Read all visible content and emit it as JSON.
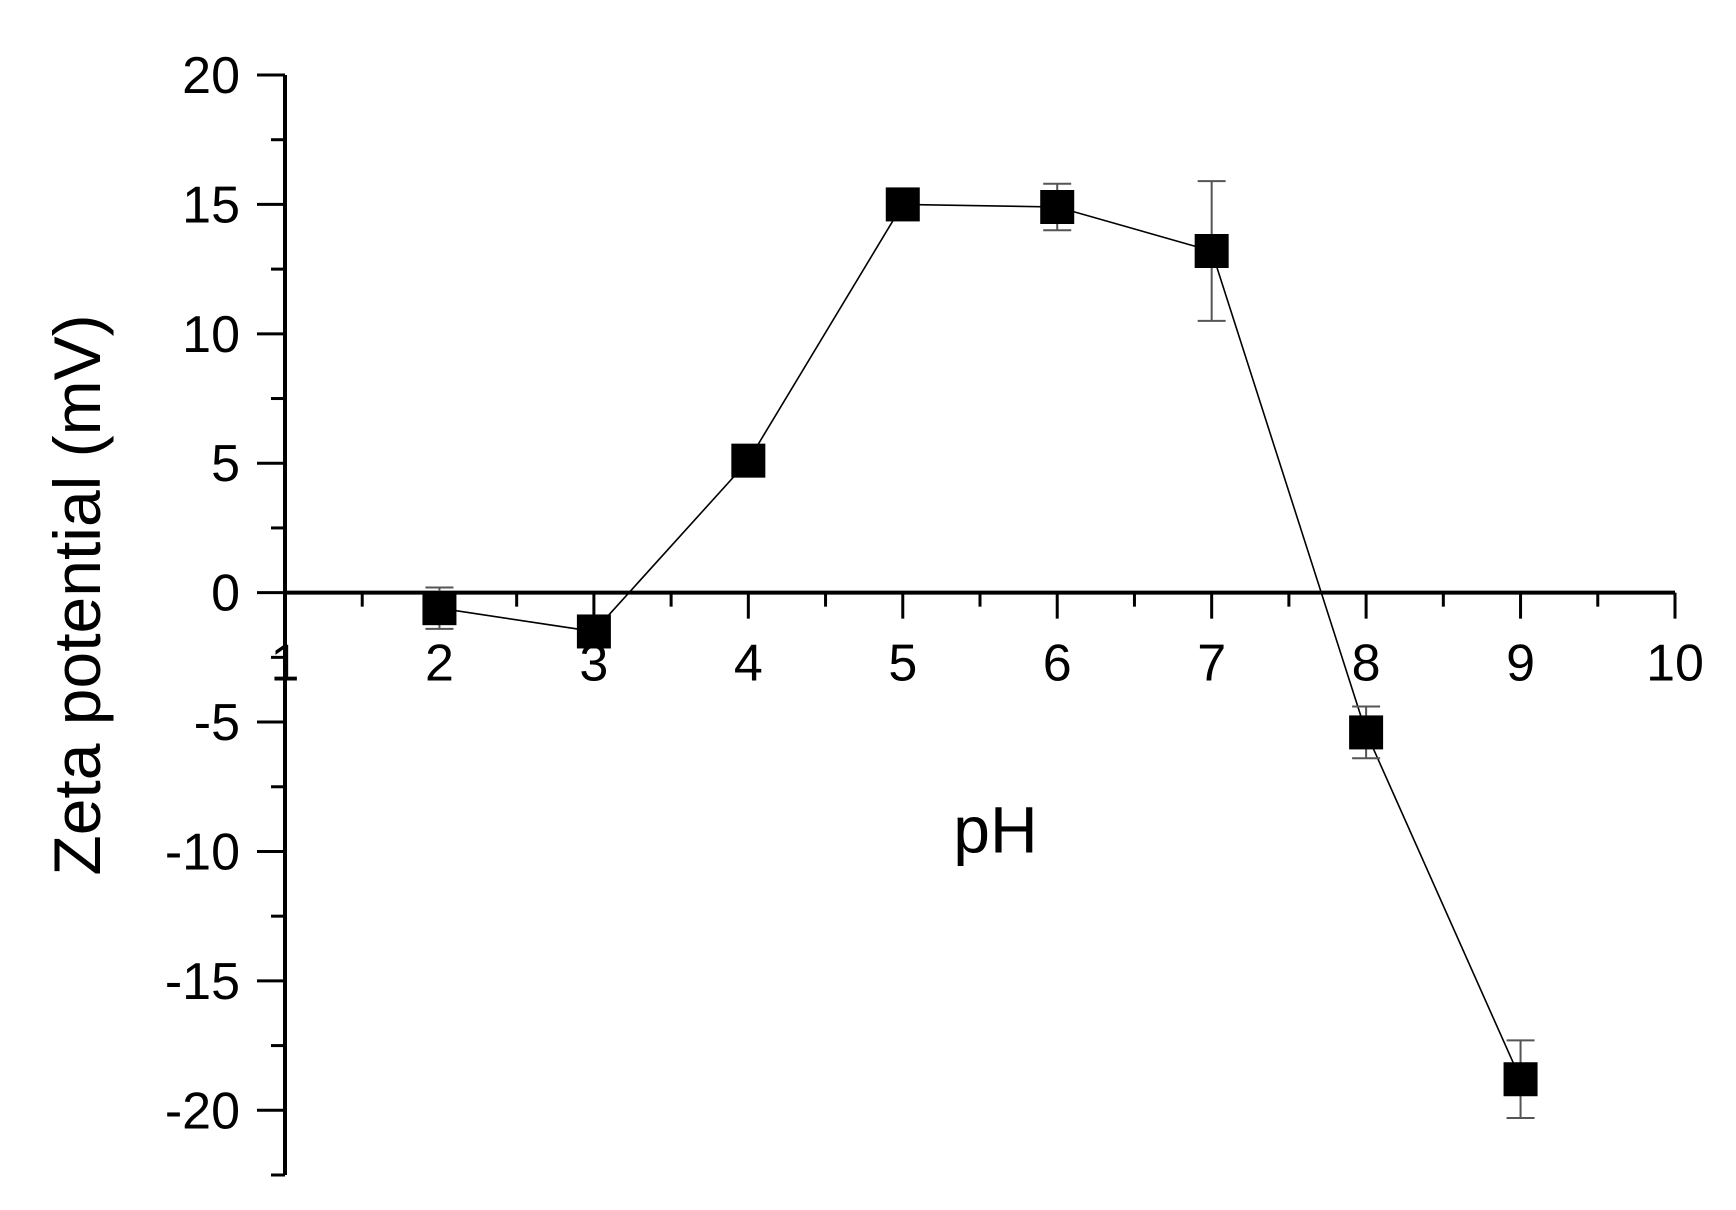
{
  "chart_data": {
    "type": "scatter",
    "title": "",
    "xlabel": "pH",
    "ylabel": "Zeta potential (mV)",
    "xlim": [
      1,
      10
    ],
    "ylim": [
      -22.5,
      20
    ],
    "x_ticks": [
      "1",
      "2",
      "3",
      "4",
      "5",
      "6",
      "7",
      "8",
      "9",
      "10"
    ],
    "y_ticks": [
      "20",
      "15",
      "10",
      "5",
      "0",
      "-5",
      "-10",
      "-15",
      "-20"
    ],
    "y_tick_values": [
      20,
      15,
      10,
      5,
      0,
      -5,
      -10,
      -15,
      -20
    ],
    "x_tick_values": [
      1,
      2,
      3,
      4,
      5,
      6,
      7,
      8,
      9,
      10
    ],
    "grid": false,
    "legend": "none",
    "marker": "filled-square",
    "line": "connected",
    "series": [
      {
        "x": [
          2,
          3,
          4,
          5,
          6,
          7,
          8,
          9
        ],
        "y": [
          -0.6,
          -1.5,
          5.1,
          15.0,
          14.9,
          13.2,
          -5.4,
          -18.8
        ],
        "error": [
          0.8,
          0.2,
          0.2,
          0.2,
          0.9,
          2.7,
          1.0,
          1.5
        ]
      }
    ],
    "colors": {
      "marks": "#000000",
      "error_bars": "#555555"
    }
  }
}
